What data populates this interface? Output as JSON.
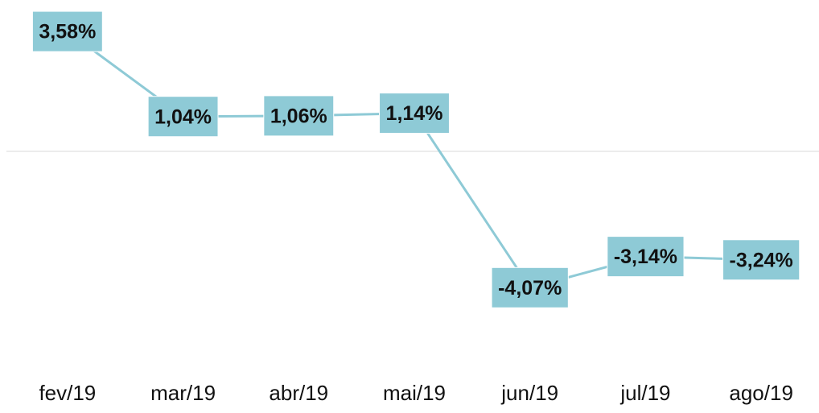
{
  "chart_data": {
    "type": "line",
    "categories": [
      "fev/19",
      "mar/19",
      "abr/19",
      "mai/19",
      "jun/19",
      "jul/19",
      "ago/19"
    ],
    "values": [
      3.58,
      1.04,
      1.06,
      1.14,
      -4.07,
      -3.14,
      -3.24
    ],
    "value_labels": [
      "3,58%",
      "1,04%",
      "1,06%",
      "1,14%",
      "-4,07%",
      "-3,14%",
      "-3,24%"
    ],
    "color": "#8ecad6",
    "ylim": [
      -5,
      4
    ]
  }
}
